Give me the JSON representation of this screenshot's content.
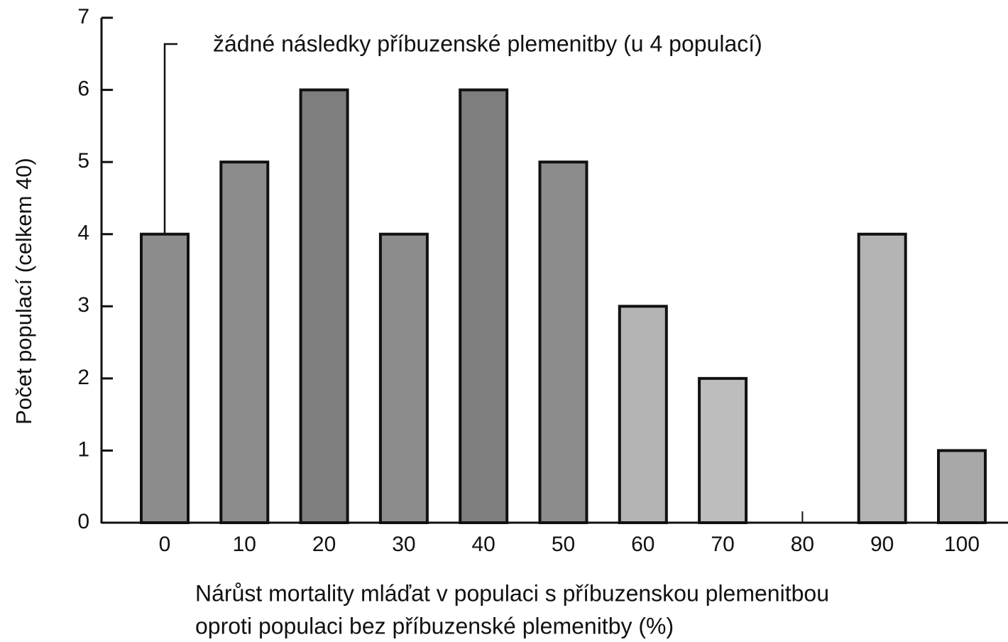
{
  "chart_data": {
    "type": "bar",
    "annotation": "žádné následky příbuzenské plemenitby (u 4 populací)",
    "ylabel": "Počet populací (celkem 40)",
    "xlabel": [
      "Nárůst mortality mláďat v populaci s příbuzenskou plemenitbou",
      "oproti populaci bez příbuzenské plemenitby (%)"
    ],
    "categories": [
      "0",
      "10",
      "20",
      "30",
      "40",
      "50",
      "60",
      "70",
      "80",
      "90",
      "100"
    ],
    "values": [
      4,
      5,
      6,
      4,
      6,
      5,
      3,
      2,
      0,
      4,
      1
    ],
    "colors": [
      "#8c8c8c",
      "#8c8c8c",
      "#7e7e7e",
      "#8c8c8c",
      "#7e7e7e",
      "#8c8c8c",
      "#b4b4b4",
      "#bdbdbd",
      "#bdbdbd",
      "#b4b4b4",
      "#a8a8a8"
    ],
    "ylim": [
      0,
      7
    ],
    "yticks": [
      0,
      1,
      2,
      3,
      4,
      5,
      6,
      7
    ],
    "grid": false
  }
}
